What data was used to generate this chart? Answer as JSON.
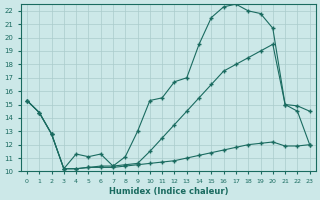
{
  "background_color": "#cce8e8",
  "grid_color": "#b0d0d0",
  "line_color": "#1a6b60",
  "xlabel": "Humidex (Indice chaleur)",
  "xlim": [
    -0.5,
    23.5
  ],
  "ylim": [
    10,
    22.5
  ],
  "xticks": [
    0,
    1,
    2,
    3,
    4,
    5,
    6,
    7,
    8,
    9,
    10,
    11,
    12,
    13,
    14,
    15,
    16,
    17,
    18,
    19,
    20,
    21,
    22,
    23
  ],
  "yticks": [
    10,
    11,
    12,
    13,
    14,
    15,
    16,
    17,
    18,
    19,
    20,
    21,
    22
  ],
  "line1_x": [
    0,
    1,
    2,
    3,
    4,
    5,
    6,
    7,
    8,
    9,
    10,
    11,
    12,
    13,
    14,
    15,
    16,
    17,
    18,
    19,
    20,
    21,
    22,
    23
  ],
  "line1_y": [
    15.3,
    14.4,
    12.8,
    10.2,
    11.3,
    11.1,
    11.3,
    10.4,
    11.1,
    13.0,
    15.3,
    15.5,
    16.7,
    17.0,
    19.5,
    21.5,
    22.3,
    22.5,
    22.0,
    21.8,
    20.7,
    15.0,
    14.9,
    14.5
  ],
  "line2_x": [
    0,
    1,
    2,
    3,
    4,
    5,
    6,
    7,
    8,
    9,
    10,
    11,
    12,
    13,
    14,
    15,
    16,
    17,
    18,
    19,
    20,
    21,
    22,
    23
  ],
  "line2_y": [
    15.3,
    14.4,
    12.8,
    10.2,
    10.2,
    10.3,
    10.4,
    10.4,
    10.5,
    10.6,
    11.5,
    12.5,
    13.5,
    14.5,
    15.5,
    16.5,
    17.5,
    18.0,
    18.5,
    19.0,
    19.5,
    15.0,
    14.5,
    12.0
  ],
  "line3_x": [
    0,
    1,
    2,
    3,
    4,
    5,
    6,
    7,
    8,
    9,
    10,
    11,
    12,
    13,
    14,
    15,
    16,
    17,
    18,
    19,
    20,
    21,
    22,
    23
  ],
  "line3_y": [
    15.3,
    14.4,
    12.8,
    10.2,
    10.2,
    10.3,
    10.3,
    10.3,
    10.4,
    10.5,
    10.6,
    10.7,
    10.8,
    11.0,
    11.2,
    11.4,
    11.6,
    11.8,
    12.0,
    12.1,
    12.2,
    11.9,
    11.9,
    12.0
  ]
}
